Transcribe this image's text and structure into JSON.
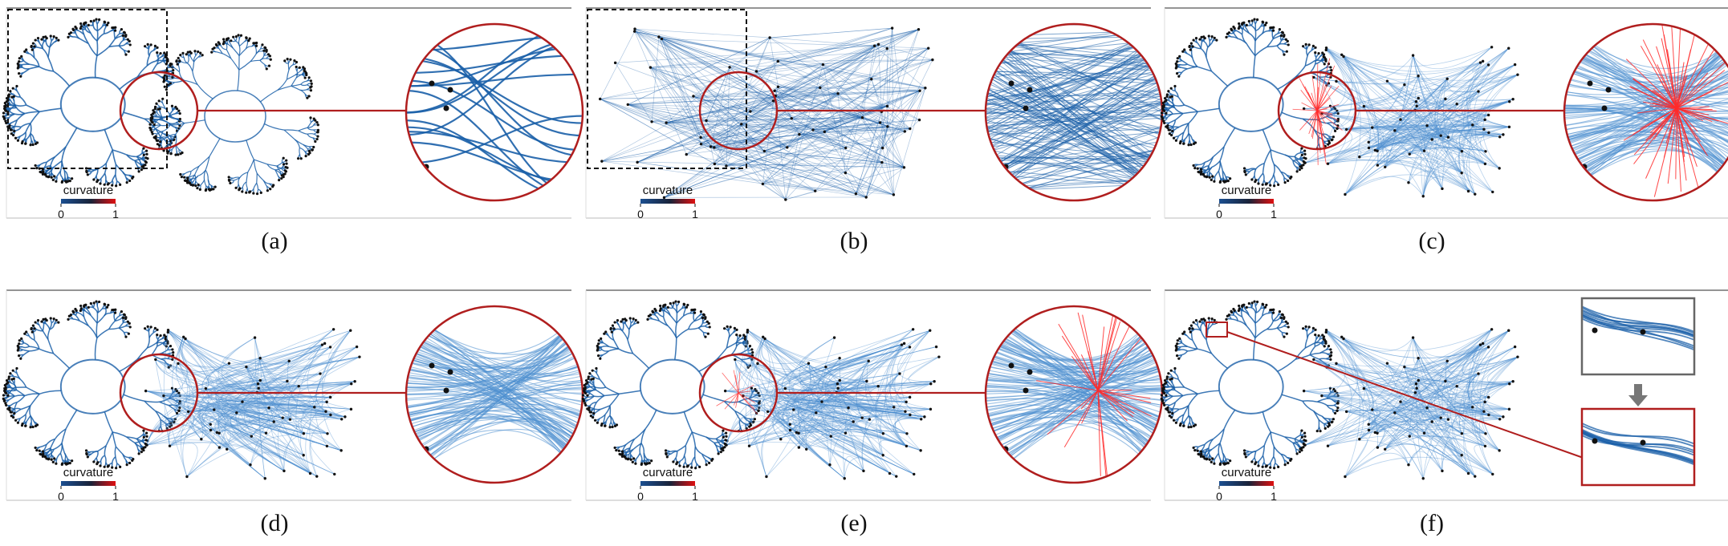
{
  "figure": {
    "description_free": true,
    "colors": {
      "edge_blue": "#1a5fa8",
      "edge_light": "#4e8fcf",
      "node": "#111111",
      "zoom_circle": "#b01e1e",
      "highlight_red": "#ff2a2a",
      "frame_gray": "#666666",
      "dashed_box": "#111111",
      "arrow_gray": "#777777",
      "legend_start": "#1b4f91",
      "legend_mid": "#1a2238",
      "legend_end": "#e01010"
    },
    "panels": [
      {
        "id": "a",
        "caption": "(a)",
        "legend_title": "curvature",
        "legend_min": "0",
        "legend_max": "1",
        "variant": "tree-only"
      },
      {
        "id": "b",
        "caption": "(b)",
        "legend_title": "curvature",
        "legend_min": "0",
        "legend_max": "1",
        "variant": "straight"
      },
      {
        "id": "c",
        "caption": "(c)",
        "legend_title": "curvature",
        "legend_min": "0",
        "legend_max": "1",
        "variant": "red-burst"
      },
      {
        "id": "d",
        "caption": "(d)",
        "legend_title": "curvature",
        "legend_min": "0",
        "legend_max": "1",
        "variant": "bundled"
      },
      {
        "id": "e",
        "caption": "(e)",
        "legend_title": "curvature",
        "legend_min": "0",
        "legend_max": "1",
        "variant": "bundled-red"
      },
      {
        "id": "f",
        "caption": "(f)",
        "legend_title": "curvature",
        "legend_min": "0",
        "legend_max": "1",
        "variant": "inset-detail"
      }
    ]
  }
}
